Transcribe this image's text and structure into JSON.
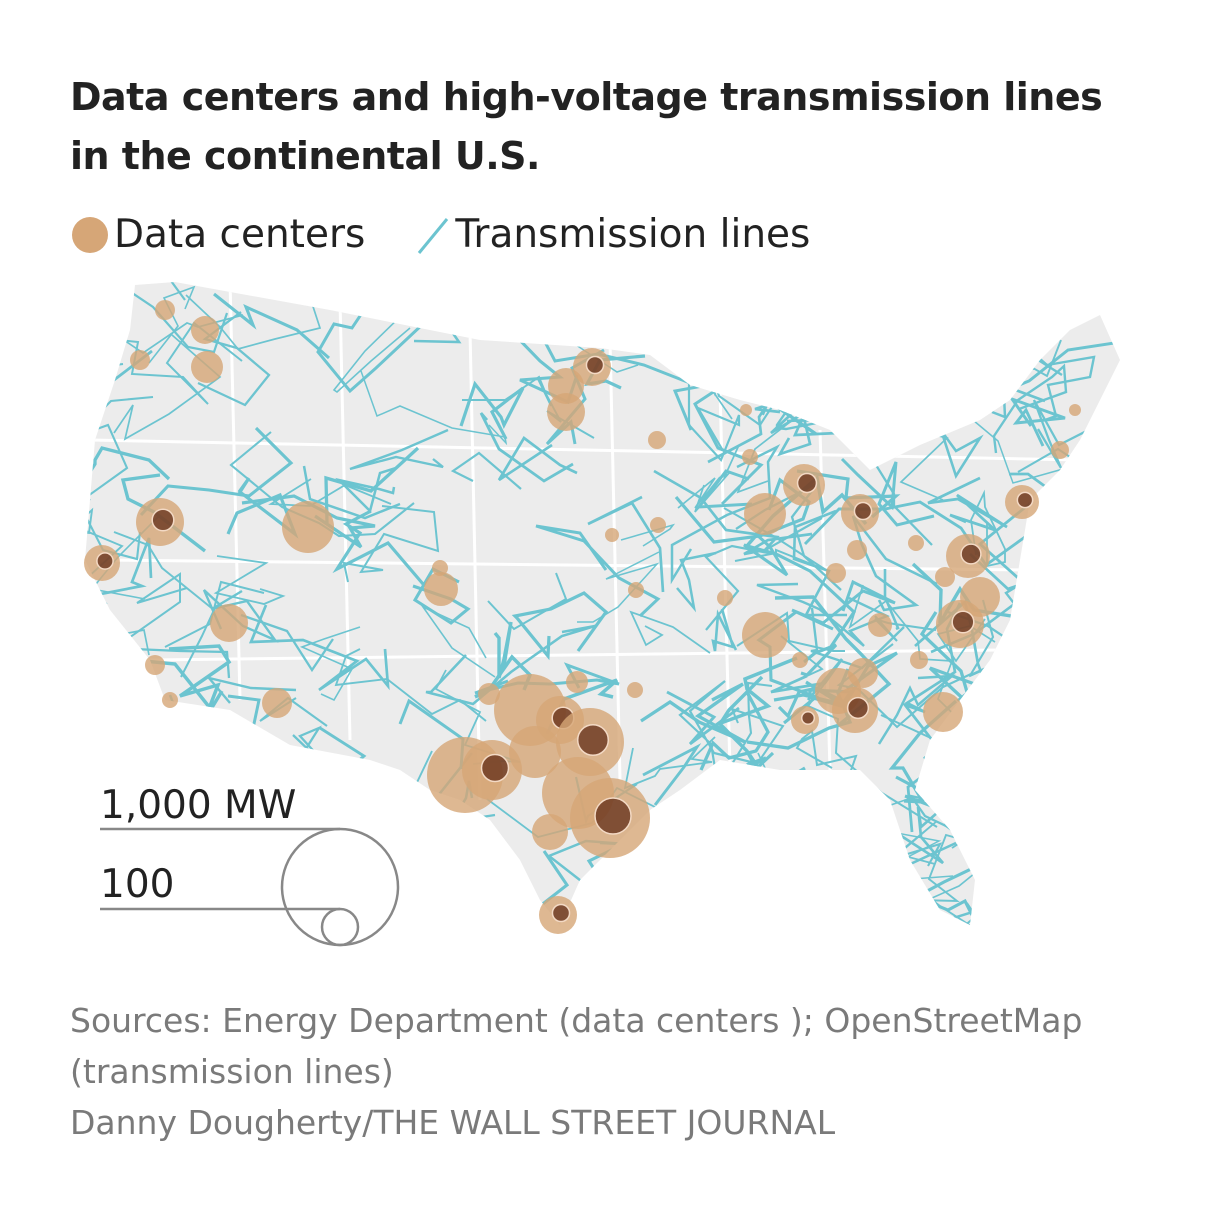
{
  "title": "Data centers and high-voltage transmission lines in the continental U.S.",
  "legend": {
    "data_centers": "Data centers",
    "transmission_lines": "Transmission lines"
  },
  "size_legend": {
    "large": "1,000 MW",
    "small": "100"
  },
  "sources": {
    "line1": "Sources: Energy Department (data centers ); OpenStreetMap (transmission lines)",
    "credit": "Danny Dougherty/THE WALL STREET JOURNAL"
  },
  "colors": {
    "data_center": "#d6a677",
    "data_center_dark": "#5a2410",
    "transmission": "#6cc4d0",
    "land": "#ececec",
    "borders": "#ffffff"
  }
}
